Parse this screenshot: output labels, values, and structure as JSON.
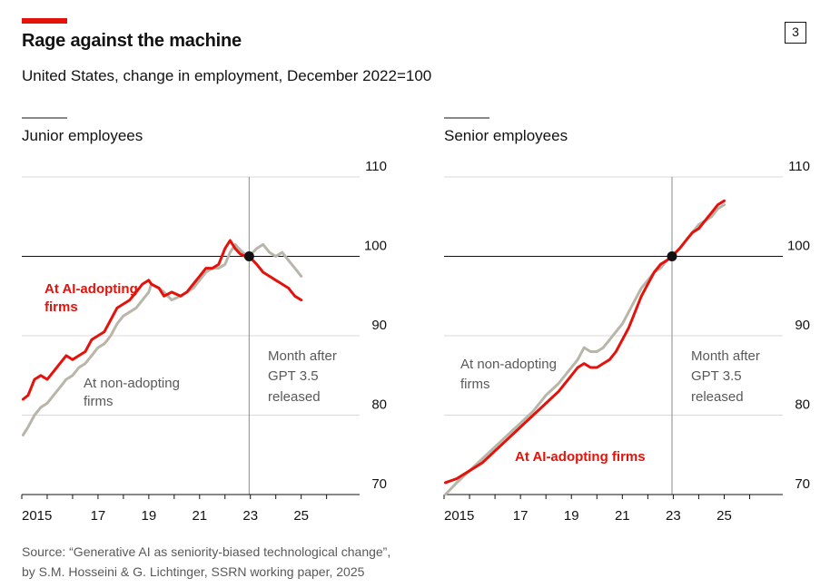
{
  "header": {
    "title": "Rage against the machine",
    "subtitle": "United States, change in employment, December 2022=100",
    "badge": "3"
  },
  "source": {
    "line1": "Source: “Generative AI as seniority-biased technological change”,",
    "line2": "by S.M. Hosseini & G. Lichtinger, SSRN working paper, 2025"
  },
  "colors": {
    "ai_adopting": "#e3120b",
    "non_adopting": "#b8b6a9",
    "reference_line": "#121212",
    "grid": "#d9d9d9",
    "text_grey": "#595959"
  },
  "chart_data": [
    {
      "type": "line",
      "title": "Junior employees",
      "xlim": [
        2014.0,
        2027.3
      ],
      "ylim": [
        70,
        110
      ],
      "yticks": [
        70,
        80,
        90,
        100,
        110
      ],
      "xticks": [
        {
          "value": 2015,
          "label": "2015"
        },
        {
          "value": 2017,
          "label": "17"
        },
        {
          "value": 2019,
          "label": "19"
        },
        {
          "value": 2021,
          "label": "21"
        },
        {
          "value": 2023,
          "label": "23"
        },
        {
          "value": 2025,
          "label": "25"
        }
      ],
      "grid": true,
      "reference_value": 100,
      "event": {
        "x": 2022.95,
        "text": [
          "Month after",
          "GPT 3.5",
          "released"
        ]
      },
      "series": [
        {
          "name": "At non-adopting firms",
          "label_lines": [
            "At non-adopting",
            "firms"
          ],
          "color": "#b8b6a9",
          "x": [
            2014.05,
            2014.25,
            2014.5,
            2014.75,
            2015.0,
            2015.25,
            2015.5,
            2015.75,
            2016.0,
            2016.25,
            2016.5,
            2016.75,
            2017.0,
            2017.25,
            2017.5,
            2017.75,
            2018.0,
            2018.25,
            2018.5,
            2018.75,
            2019.0,
            2019.1,
            2019.4,
            2019.6,
            2019.9,
            2020.25,
            2020.5,
            2020.75,
            2021.0,
            2021.25,
            2021.5,
            2021.75,
            2022.0,
            2022.2,
            2022.4,
            2022.6,
            2022.8,
            2022.95,
            2023.25,
            2023.5,
            2023.75,
            2024.0,
            2024.25,
            2024.5,
            2024.75,
            2025.0
          ],
          "y": [
            77.5,
            78.5,
            80.0,
            81.0,
            81.5,
            82.5,
            83.5,
            84.5,
            85.0,
            86.0,
            86.5,
            87.5,
            88.5,
            89.0,
            90.0,
            91.5,
            92.5,
            93.0,
            93.5,
            94.5,
            95.5,
            96.5,
            96.0,
            95.5,
            94.5,
            95.0,
            95.5,
            96.0,
            97.0,
            98.0,
            98.5,
            98.5,
            99.0,
            100.5,
            101.5,
            100.8,
            100.2,
            100.0,
            101.0,
            101.5,
            100.5,
            100.0,
            100.5,
            99.5,
            98.5,
            97.5
          ]
        },
        {
          "name": "At AI-adopting firms",
          "label_lines": [
            "At AI-adopting",
            "firms"
          ],
          "color": "#e3120b",
          "x": [
            2014.05,
            2014.25,
            2014.5,
            2014.75,
            2015.0,
            2015.25,
            2015.5,
            2015.75,
            2016.0,
            2016.25,
            2016.5,
            2016.75,
            2017.0,
            2017.25,
            2017.5,
            2017.75,
            2018.0,
            2018.25,
            2018.5,
            2018.75,
            2019.0,
            2019.1,
            2019.4,
            2019.6,
            2019.9,
            2020.25,
            2020.5,
            2020.75,
            2021.0,
            2021.25,
            2021.5,
            2021.75,
            2022.0,
            2022.2,
            2022.4,
            2022.6,
            2022.8,
            2022.95,
            2023.25,
            2023.5,
            2023.75,
            2024.0,
            2024.25,
            2024.5,
            2024.75,
            2025.0
          ],
          "y": [
            82.0,
            82.5,
            84.5,
            85.0,
            84.5,
            85.5,
            86.5,
            87.5,
            87.0,
            87.5,
            88.0,
            89.5,
            90.0,
            90.5,
            92.0,
            93.5,
            94.0,
            94.5,
            95.5,
            96.5,
            97.0,
            96.5,
            96.0,
            95.0,
            95.5,
            95.0,
            95.5,
            96.5,
            97.5,
            98.5,
            98.5,
            99.0,
            101.0,
            102.0,
            101.0,
            100.3,
            100.0,
            100.0,
            99.0,
            98.0,
            97.5,
            97.0,
            96.5,
            96.0,
            95.0,
            94.5
          ]
        }
      ]
    },
    {
      "type": "line",
      "title": "Senior employees",
      "xlim": [
        2014.0,
        2027.3
      ],
      "ylim": [
        70,
        110
      ],
      "yticks": [
        70,
        80,
        90,
        100,
        110
      ],
      "xticks": [
        {
          "value": 2015,
          "label": "2015"
        },
        {
          "value": 2017,
          "label": "17"
        },
        {
          "value": 2019,
          "label": "19"
        },
        {
          "value": 2021,
          "label": "21"
        },
        {
          "value": 2023,
          "label": "23"
        },
        {
          "value": 2025,
          "label": "25"
        }
      ],
      "grid": true,
      "reference_value": 100,
      "event": {
        "x": 2022.95,
        "text": [
          "Month after",
          "GPT 3.5",
          "released"
        ]
      },
      "series": [
        {
          "name": "At non-adopting firms",
          "label_lines": [
            "At non-adopting",
            "firms"
          ],
          "color": "#b8b6a9",
          "x": [
            2014.05,
            2014.5,
            2015.0,
            2015.5,
            2016.0,
            2016.5,
            2017.0,
            2017.5,
            2018.0,
            2018.5,
            2019.0,
            2019.25,
            2019.5,
            2019.75,
            2020.0,
            2020.25,
            2020.5,
            2020.75,
            2021.0,
            2021.25,
            2021.5,
            2021.75,
            2022.0,
            2022.25,
            2022.5,
            2022.75,
            2022.95,
            2023.25,
            2023.5,
            2023.75,
            2024.0,
            2024.25,
            2024.5,
            2024.75,
            2025.0
          ],
          "y": [
            70.0,
            71.5,
            73.0,
            74.5,
            76.0,
            77.5,
            79.0,
            80.5,
            82.5,
            84.0,
            86.0,
            87.0,
            88.5,
            88.0,
            88.0,
            88.5,
            89.5,
            90.5,
            91.5,
            93.0,
            94.5,
            96.0,
            97.0,
            98.0,
            98.5,
            99.5,
            100.0,
            101.0,
            102.0,
            103.0,
            104.0,
            104.5,
            105.0,
            106.0,
            106.5
          ]
        },
        {
          "name": "At AI-adopting firms",
          "label_lines": [
            "At AI-adopting firms"
          ],
          "color": "#e3120b",
          "x": [
            2014.05,
            2014.5,
            2015.0,
            2015.5,
            2016.0,
            2016.5,
            2017.0,
            2017.5,
            2018.0,
            2018.5,
            2019.0,
            2019.25,
            2019.5,
            2019.75,
            2020.0,
            2020.25,
            2020.5,
            2020.75,
            2021.0,
            2021.25,
            2021.5,
            2021.75,
            2022.0,
            2022.25,
            2022.5,
            2022.75,
            2022.95,
            2023.25,
            2023.5,
            2023.75,
            2024.0,
            2024.25,
            2024.5,
            2024.75,
            2025.0
          ],
          "y": [
            71.5,
            72.0,
            73.0,
            74.0,
            75.5,
            77.0,
            78.5,
            80.0,
            81.5,
            83.0,
            85.0,
            86.0,
            86.5,
            86.0,
            86.0,
            86.5,
            87.0,
            88.0,
            89.5,
            91.0,
            93.0,
            95.0,
            96.5,
            98.0,
            99.0,
            99.5,
            100.0,
            101.0,
            102.0,
            103.0,
            103.5,
            104.5,
            105.5,
            106.5,
            107.0
          ]
        }
      ]
    }
  ]
}
